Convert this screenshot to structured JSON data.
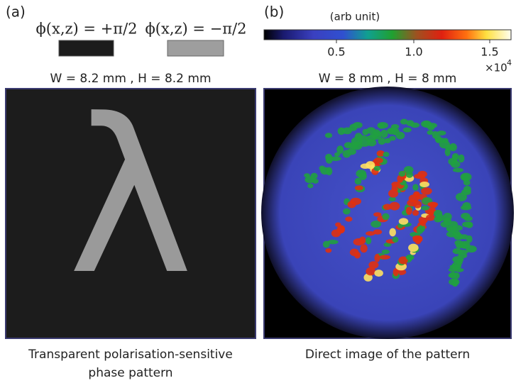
{
  "panel_a": {
    "label": "(a)",
    "phase_plus": "ϕ(x,z) = +π/2",
    "phase_minus": "ϕ(x,z) = −π/2",
    "size": "W = 8.2 mm , H = 8.2 mm",
    "glyph": "λ",
    "caption": [
      "Transparent polarisation-sensitive",
      "phase pattern"
    ]
  },
  "panel_b": {
    "label": "(b)",
    "colorbar": {
      "label": "(arb unit)",
      "ticks": [
        "0.5",
        "1.0",
        "1.5"
      ],
      "multiplier": {
        "base": "×10",
        "exponent": "4"
      }
    },
    "size": "W = 8 mm , H = 8 mm",
    "caption": "Direct image of the pattern"
  }
}
